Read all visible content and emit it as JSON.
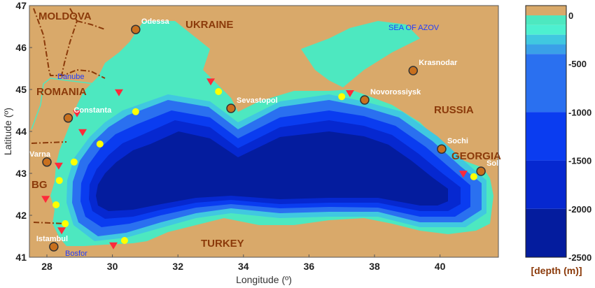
{
  "map": {
    "x_axis_label": "Longitude (º)",
    "y_axis_label": "Latitude (º)",
    "x_ticks": [
      "28",
      "30",
      "32",
      "34",
      "36",
      "38",
      "40"
    ],
    "y_ticks": [
      "47",
      "46",
      "45",
      "44",
      "43",
      "42",
      "41"
    ],
    "colors": {
      "land": "#d9a96a",
      "shelf": "#4de8c0",
      "deep": "#041c9e",
      "city": "#c8701e",
      "triangle": "#ff2a3a",
      "dot": "#ffff00"
    },
    "countries": [
      "MOLDOVA",
      "UKRAINE",
      "ROMANIA",
      "RUSSIA",
      "BG",
      "GEORGIA",
      "TURKEY"
    ],
    "water_labels": [
      "SEA OF AZOV",
      "Danube",
      "Bosfor"
    ],
    "cities": [
      {
        "name": "Odessa",
        "lon": 30.71,
        "lat": 46.43
      },
      {
        "name": "Constanta",
        "lon": 28.65,
        "lat": 44.32
      },
      {
        "name": "Varna",
        "lon": 28.0,
        "lat": 43.27
      },
      {
        "name": "Istambul",
        "lon": 28.21,
        "lat": 41.25
      },
      {
        "name": "Sevastopol",
        "lon": 33.62,
        "lat": 44.55
      },
      {
        "name": "Novorossiysk",
        "lon": 37.7,
        "lat": 44.75
      },
      {
        "name": "Krasnodar",
        "lon": 39.18,
        "lat": 45.45
      },
      {
        "name": "Sochi",
        "lon": 40.05,
        "lat": 43.58
      },
      {
        "name": "Sokhumi",
        "lon": 41.25,
        "lat": 43.05
      }
    ],
    "triangle_stations": [
      [
        30.2,
        44.92
      ],
      [
        28.92,
        44.42
      ],
      [
        29.09,
        43.97
      ],
      [
        28.36,
        43.17
      ],
      [
        27.96,
        42.38
      ],
      [
        28.45,
        41.63
      ],
      [
        30.03,
        41.27
      ],
      [
        33.0,
        45.18
      ],
      [
        37.25,
        44.9
      ],
      [
        40.71,
        42.98
      ]
    ],
    "dot_stations": [
      [
        30.71,
        44.47
      ],
      [
        29.62,
        43.7
      ],
      [
        28.83,
        43.27
      ],
      [
        28.38,
        42.83
      ],
      [
        28.28,
        42.25
      ],
      [
        28.56,
        41.8
      ],
      [
        30.37,
        41.4
      ],
      [
        33.24,
        44.95
      ],
      [
        37.0,
        44.83
      ],
      [
        41.03,
        42.92
      ]
    ]
  },
  "colorbar": {
    "label": "[depth (m)]",
    "ticks": [
      "0",
      "-500",
      "-1000",
      "-1500",
      "-2000",
      "-2500"
    ],
    "bands": [
      {
        "from": 0,
        "to": 100,
        "color": "#d9a96a"
      },
      {
        "from": -100,
        "to": 0,
        "color": "#4de8c0"
      },
      {
        "from": -200,
        "to": -100,
        "color": "#4df0d0"
      },
      {
        "from": -300,
        "to": -200,
        "color": "#40c8e0"
      },
      {
        "from": -400,
        "to": -300,
        "color": "#3aa0e8"
      },
      {
        "from": -1000,
        "to": -400,
        "color": "#2a70f0"
      },
      {
        "from": -1500,
        "to": -1000,
        "color": "#0a3cf0"
      },
      {
        "from": -2000,
        "to": -1500,
        "color": "#0628d0"
      },
      {
        "from": -2500,
        "to": -2000,
        "color": "#041c9e"
      }
    ]
  }
}
